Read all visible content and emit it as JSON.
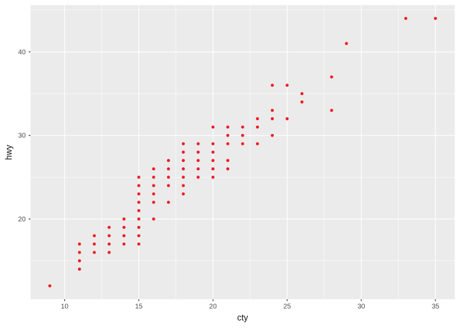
{
  "chart_data": {
    "type": "scatter",
    "title": "",
    "xlabel": "cty",
    "ylabel": "hwy",
    "xlim": [
      7.7,
      36.3
    ],
    "ylim": [
      10.4,
      45.6
    ],
    "x_major_ticks": [
      10,
      15,
      20,
      25,
      30,
      35
    ],
    "y_major_ticks": [
      20,
      30,
      40
    ],
    "x_minor_gridlines": [
      12.5,
      17.5,
      22.5,
      27.5,
      32.5
    ],
    "y_minor_gridlines": [
      15,
      25,
      35,
      45
    ],
    "grid": "major and minor, white on gray panel",
    "legend_position": "none",
    "theme": "ggplot2 gray",
    "point_color": "#ED1C24",
    "panel_background": "#EBEBEB",
    "gridline_color": "#FFFFFF",
    "tick_label_color": "#4D4D4D",
    "tick_mark_color": "#333333",
    "axis_title_color": "#111111",
    "points": [
      [
        9,
        12
      ],
      [
        11,
        14
      ],
      [
        11,
        15
      ],
      [
        11,
        16
      ],
      [
        11,
        17
      ],
      [
        12,
        16
      ],
      [
        12,
        17
      ],
      [
        12,
        18
      ],
      [
        13,
        16
      ],
      [
        13,
        17
      ],
      [
        13,
        18
      ],
      [
        13,
        19
      ],
      [
        14,
        17
      ],
      [
        14,
        18
      ],
      [
        14,
        19
      ],
      [
        14,
        20
      ],
      [
        15,
        17
      ],
      [
        15,
        18
      ],
      [
        15,
        19
      ],
      [
        15,
        20
      ],
      [
        15,
        21
      ],
      [
        15,
        22
      ],
      [
        15,
        23
      ],
      [
        15,
        24
      ],
      [
        15,
        25
      ],
      [
        16,
        20
      ],
      [
        16,
        22
      ],
      [
        16,
        23
      ],
      [
        16,
        24
      ],
      [
        16,
        25
      ],
      [
        16,
        26
      ],
      [
        17,
        22
      ],
      [
        17,
        24
      ],
      [
        17,
        25
      ],
      [
        17,
        26
      ],
      [
        17,
        27
      ],
      [
        18,
        23
      ],
      [
        18,
        24
      ],
      [
        18,
        25
      ],
      [
        18,
        26
      ],
      [
        18,
        27
      ],
      [
        18,
        28
      ],
      [
        18,
        29
      ],
      [
        19,
        25
      ],
      [
        19,
        26
      ],
      [
        19,
        27
      ],
      [
        19,
        28
      ],
      [
        19,
        29
      ],
      [
        20,
        25
      ],
      [
        20,
        26
      ],
      [
        20,
        27
      ],
      [
        20,
        28
      ],
      [
        20,
        29
      ],
      [
        20,
        31
      ],
      [
        21,
        26
      ],
      [
        21,
        27
      ],
      [
        21,
        29
      ],
      [
        21,
        30
      ],
      [
        21,
        31
      ],
      [
        22,
        29
      ],
      [
        22,
        30
      ],
      [
        22,
        31
      ],
      [
        23,
        29
      ],
      [
        23,
        31
      ],
      [
        23,
        32
      ],
      [
        24,
        30
      ],
      [
        24,
        32
      ],
      [
        24,
        33
      ],
      [
        24,
        36
      ],
      [
        25,
        32
      ],
      [
        25,
        36
      ],
      [
        26,
        34
      ],
      [
        26,
        35
      ],
      [
        28,
        33
      ],
      [
        28,
        37
      ],
      [
        29,
        41
      ],
      [
        33,
        44
      ],
      [
        35,
        44
      ]
    ]
  }
}
